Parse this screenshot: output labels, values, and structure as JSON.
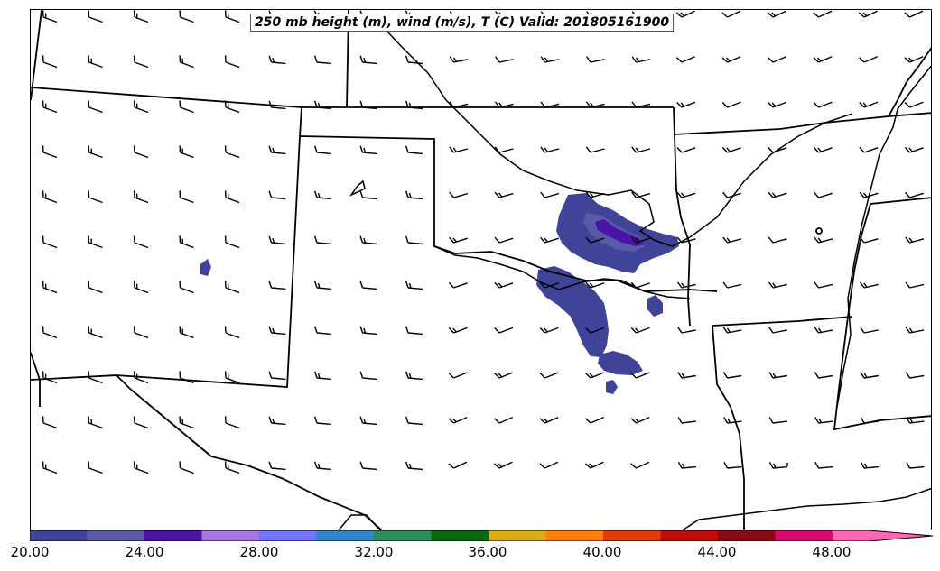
{
  "title": "250 mb height (m), wind (m/s), T (C) Valid: 201805161900",
  "colorbar": {
    "colors": [
      "#3f4499",
      "#5b5aa8",
      "#4a14a8",
      "#a874e6",
      "#7474ff",
      "#2f84cc",
      "#2e8c5c",
      "#0a6a10",
      "#d8b00e",
      "#ff7f0a",
      "#e63a06",
      "#c80a0a",
      "#8c0a14",
      "#dc0a6e",
      "#ff66b3"
    ],
    "tick_labels": [
      "20.00",
      "24.00",
      "28.00",
      "32.00",
      "36.00",
      "40.00",
      "44.00",
      "48.00"
    ]
  },
  "contour_colors": {
    "level_20": "#3f4499",
    "level_22": "#5b5aa8",
    "level_24": "#4a14a8"
  },
  "barb_color": "#000000",
  "border_color": "#000000"
}
